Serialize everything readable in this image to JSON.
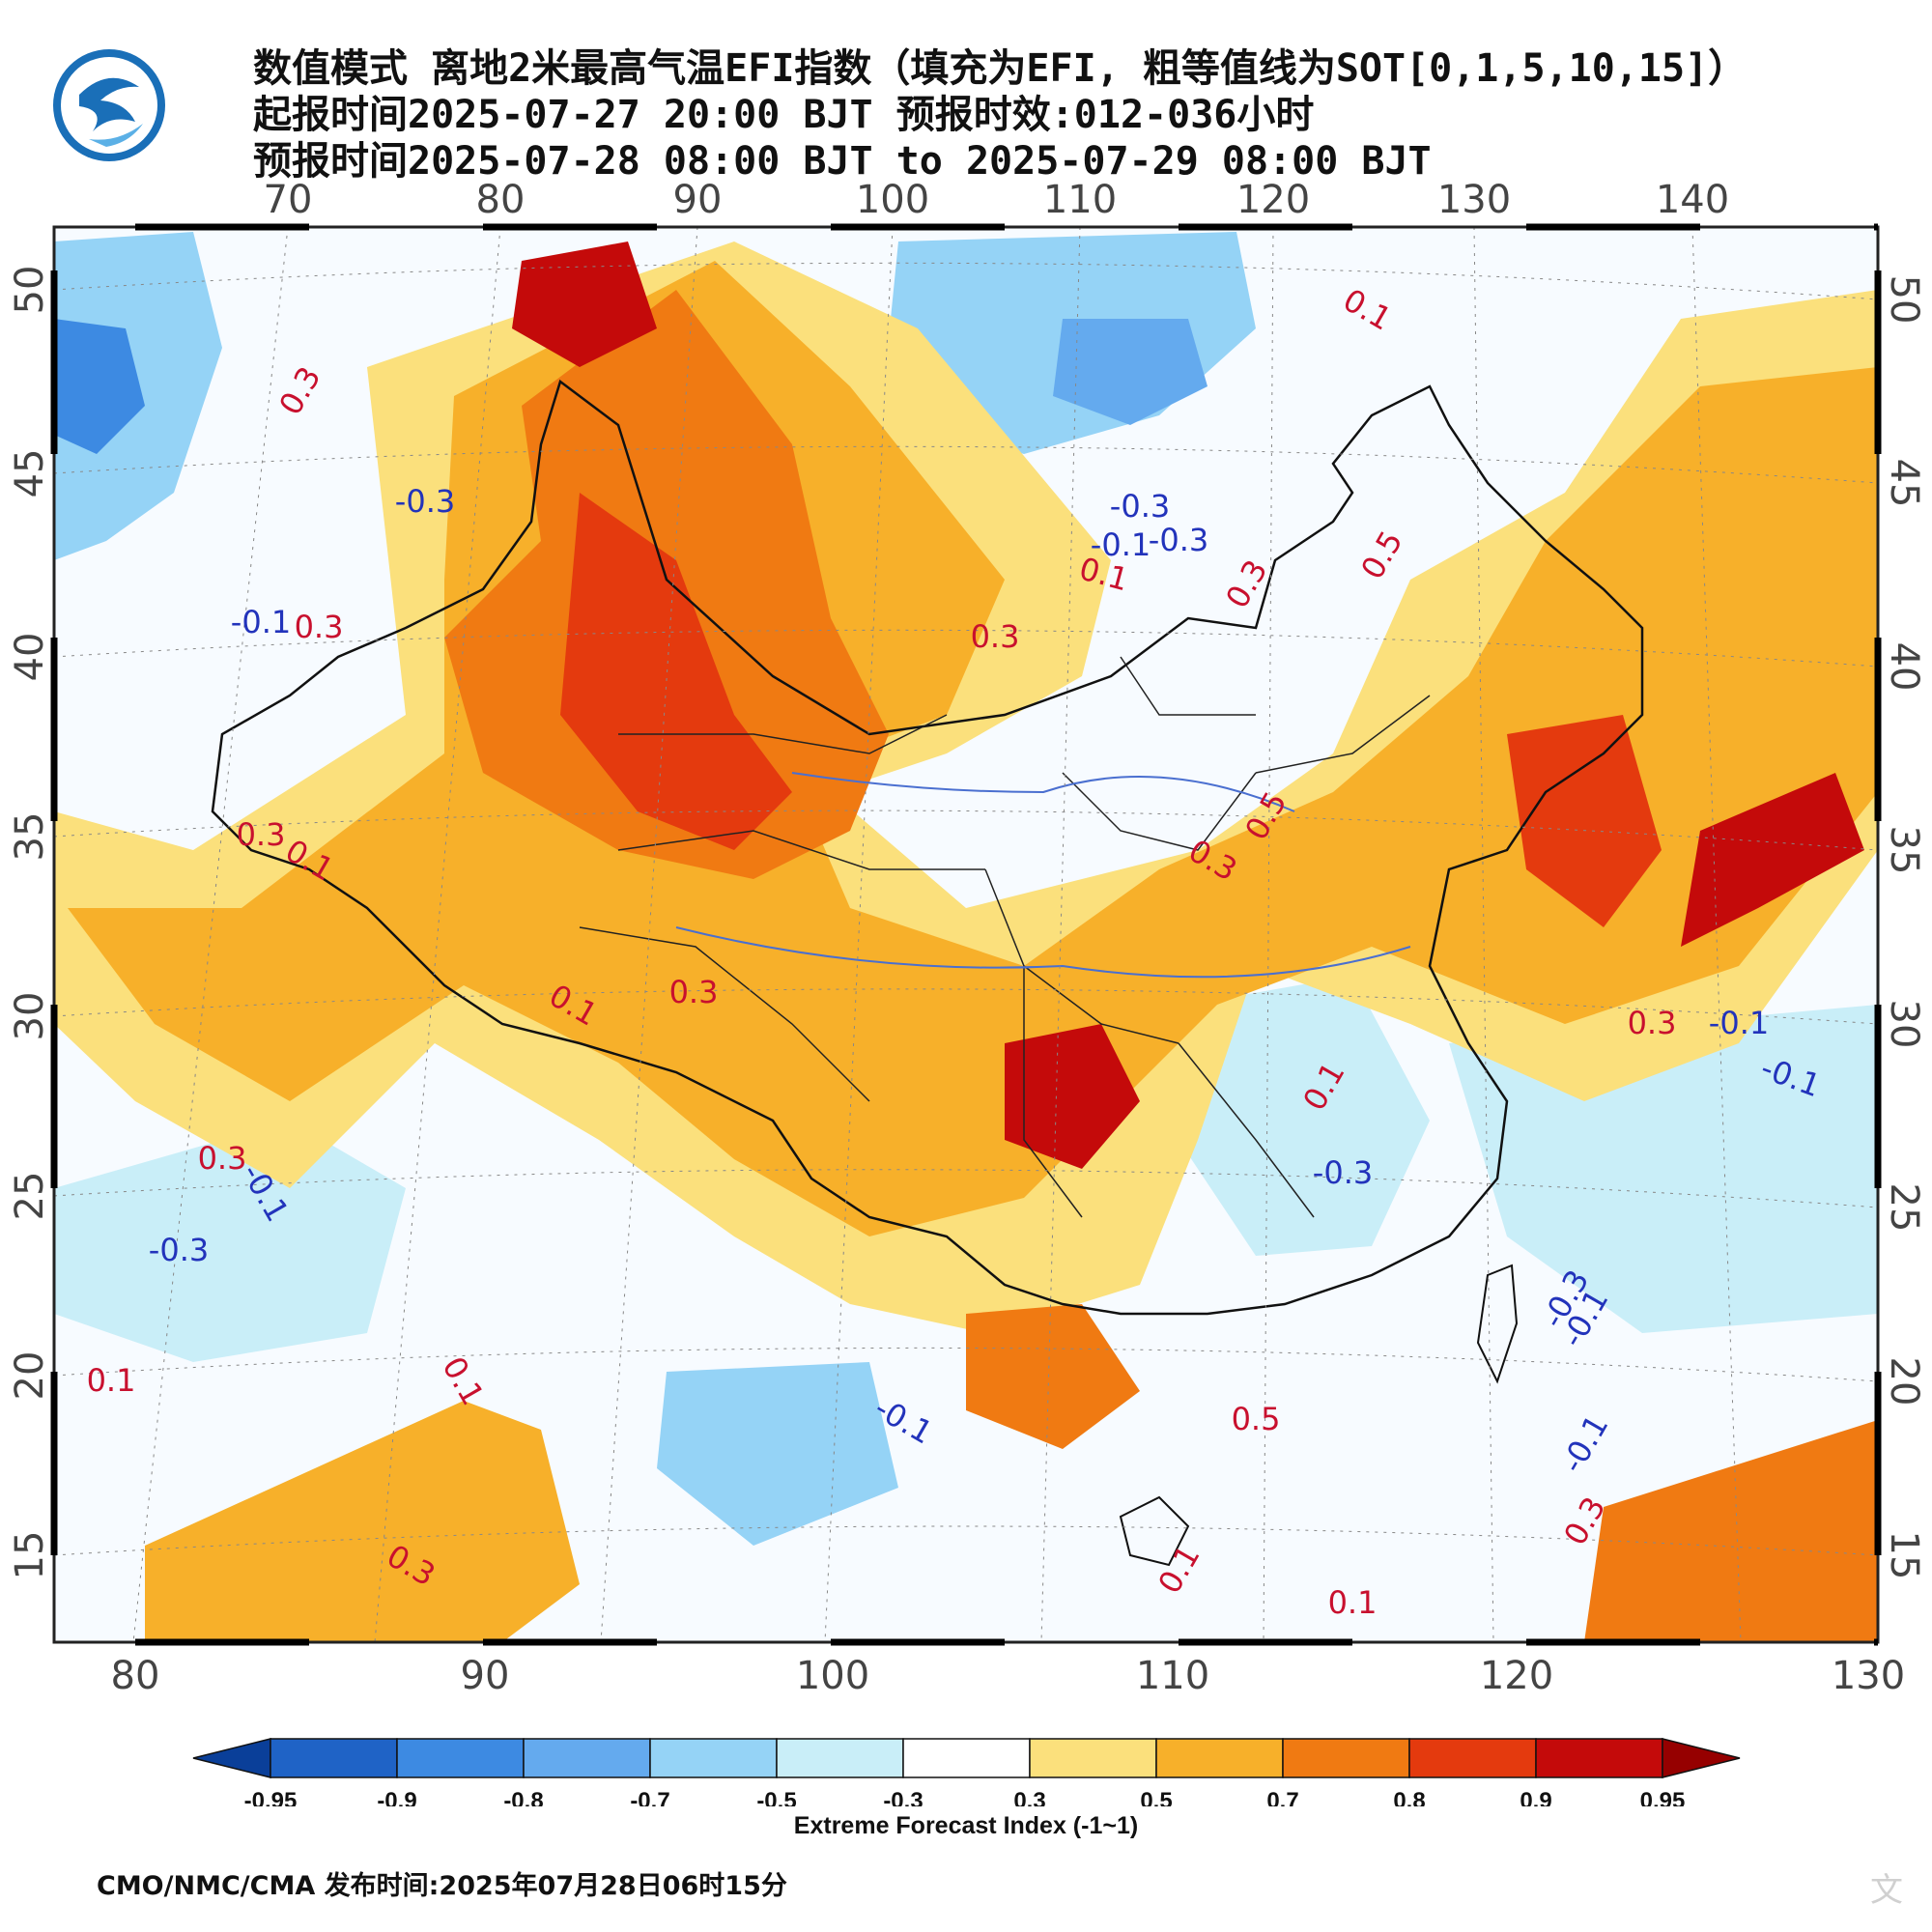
{
  "header": {
    "title_line1": "数值模式 离地2米最高气温EFI指数（填充为EFI, 粗等值线为SOT[0,1,5,10,15]）",
    "title_line2": "起报时间2025-07-27 20:00 BJT 预报时效:012-036小时",
    "title_line3": "预报时间2025-07-28 08:00 BJT to 2025-07-29 08:00 BJT",
    "logo_icon": "cma-swirl-logo-icon"
  },
  "map": {
    "top_lon_labels": [
      "70",
      "80",
      "90",
      "100",
      "110",
      "120",
      "130",
      "140"
    ],
    "bottom_lon_labels": [
      "80",
      "90",
      "100",
      "110",
      "120",
      "130"
    ],
    "left_lat_labels": [
      "50",
      "45",
      "40",
      "35",
      "30",
      "25",
      "20",
      "15"
    ],
    "right_lat_labels": [
      "50",
      "45",
      "40",
      "35",
      "30",
      "25",
      "20",
      "15"
    ],
    "contour_labels": [
      {
        "text": "0.1",
        "color": "#c8102e"
      },
      {
        "text": "-0.3",
        "color": "#2233bb"
      },
      {
        "text": "0.3",
        "color": "#c8102e"
      },
      {
        "text": "-0.3",
        "color": "#2233bb"
      },
      {
        "text": "-0.3",
        "color": "#2233bb"
      },
      {
        "text": "-0.1",
        "color": "#2233bb"
      },
      {
        "text": "0.1",
        "color": "#c8102e"
      },
      {
        "text": "0.5",
        "color": "#c8102e"
      },
      {
        "text": "0.3",
        "color": "#c8102e"
      },
      {
        "text": "0.3",
        "color": "#c8102e"
      },
      {
        "text": "-0.1",
        "color": "#2233bb"
      },
      {
        "text": "0.3",
        "color": "#c8102e"
      },
      {
        "text": "0.3",
        "color": "#c8102e"
      },
      {
        "text": "0.1",
        "color": "#c8102e"
      },
      {
        "text": "0.5",
        "color": "#c8102e"
      },
      {
        "text": "0.3",
        "color": "#c8102e"
      },
      {
        "text": "0.3",
        "color": "#c8102e"
      },
      {
        "text": "0.1",
        "color": "#c8102e"
      },
      {
        "text": "0.3",
        "color": "#c8102e"
      },
      {
        "text": "-0.1",
        "color": "#2233bb"
      },
      {
        "text": "-0.3",
        "color": "#2233bb"
      },
      {
        "text": "0.1",
        "color": "#c8102e"
      },
      {
        "text": "-0.3",
        "color": "#2233bb"
      },
      {
        "text": "-0.3",
        "color": "#2233bb"
      },
      {
        "text": "-0.1",
        "color": "#2233bb"
      },
      {
        "text": "0.1",
        "color": "#c8102e"
      },
      {
        "text": "-0.1",
        "color": "#2233bb"
      },
      {
        "text": "0.5",
        "color": "#c8102e"
      },
      {
        "text": "-0.1",
        "color": "#2233bb"
      },
      {
        "text": "0.1",
        "color": "#c8102e"
      },
      {
        "text": "0.3",
        "color": "#c8102e"
      },
      {
        "text": "0.3",
        "color": "#c8102e"
      },
      {
        "text": "0.1",
        "color": "#c8102e"
      },
      {
        "text": "0.1",
        "color": "#c8102e"
      },
      {
        "text": "0.3",
        "color": "#c8102e"
      },
      {
        "text": "-0.1",
        "color": "#2233bb"
      },
      {
        "text": "-0.1",
        "color": "#2233bb"
      }
    ]
  },
  "colorbar": {
    "ticks": [
      "-0.95",
      "-0.9",
      "-0.8",
      "-0.7",
      "-0.5",
      "-0.3",
      "0.3",
      "0.5",
      "0.7",
      "0.8",
      "0.9",
      "0.95"
    ],
    "colors": [
      "#0a3f99",
      "#1f63c6",
      "#3d8ae2",
      "#64aaee",
      "#95d3f6",
      "#c9eef8",
      "#ffffff",
      "#fbe07c",
      "#f7b02a",
      "#f07a12",
      "#e43a0e",
      "#c40a0a",
      "#960000"
    ],
    "title": "Extreme Forecast Index (-1~1)"
  },
  "footer": {
    "text": "CMO/NMC/CMA 发布时间:2025年07月28日06时15分"
  },
  "watermark": {
    "text": "文"
  }
}
